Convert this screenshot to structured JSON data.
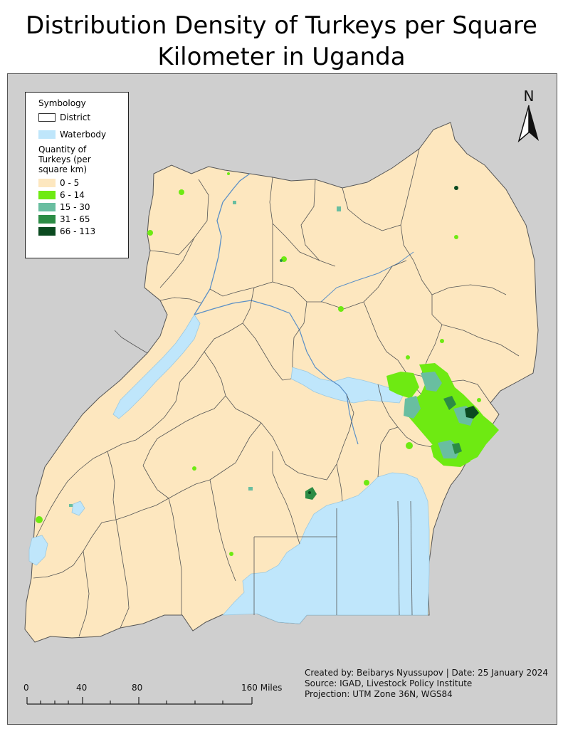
{
  "title": {
    "line1": "Distribution Density of Turkeys per Square",
    "line2": "Kilometer in Uganda"
  },
  "legend": {
    "heading": "Symbology",
    "district_label": "District",
    "waterbody_label": "Waterbody",
    "quantity_line1": "Quantity of",
    "quantity_line2": "Turkeys (per",
    "quantity_line3": "square km)",
    "classes": [
      {
        "label": "0 - 5",
        "color": "#fde7bf"
      },
      {
        "label": "6 - 14",
        "color": "#6eea12"
      },
      {
        "label": "15 - 30",
        "color": "#69bea0"
      },
      {
        "label": "31 - 65",
        "color": "#2c8c45"
      },
      {
        "label": "66 - 113",
        "color": "#0b4a20"
      }
    ],
    "water_color": "#bfe6fb",
    "district_color": "#ffffff"
  },
  "north_arrow": {
    "letter": "N"
  },
  "scale_bar": {
    "ticks": [
      "0",
      "40",
      "80",
      "160 Miles"
    ]
  },
  "credits": {
    "line1": "Created by: Beibarys Nyussupov | Date: 25 January 2024",
    "line2": "Source: IGAD, Livestock Policy Institute",
    "line3": "Projection: UTM Zone 36N, WGS84"
  }
}
